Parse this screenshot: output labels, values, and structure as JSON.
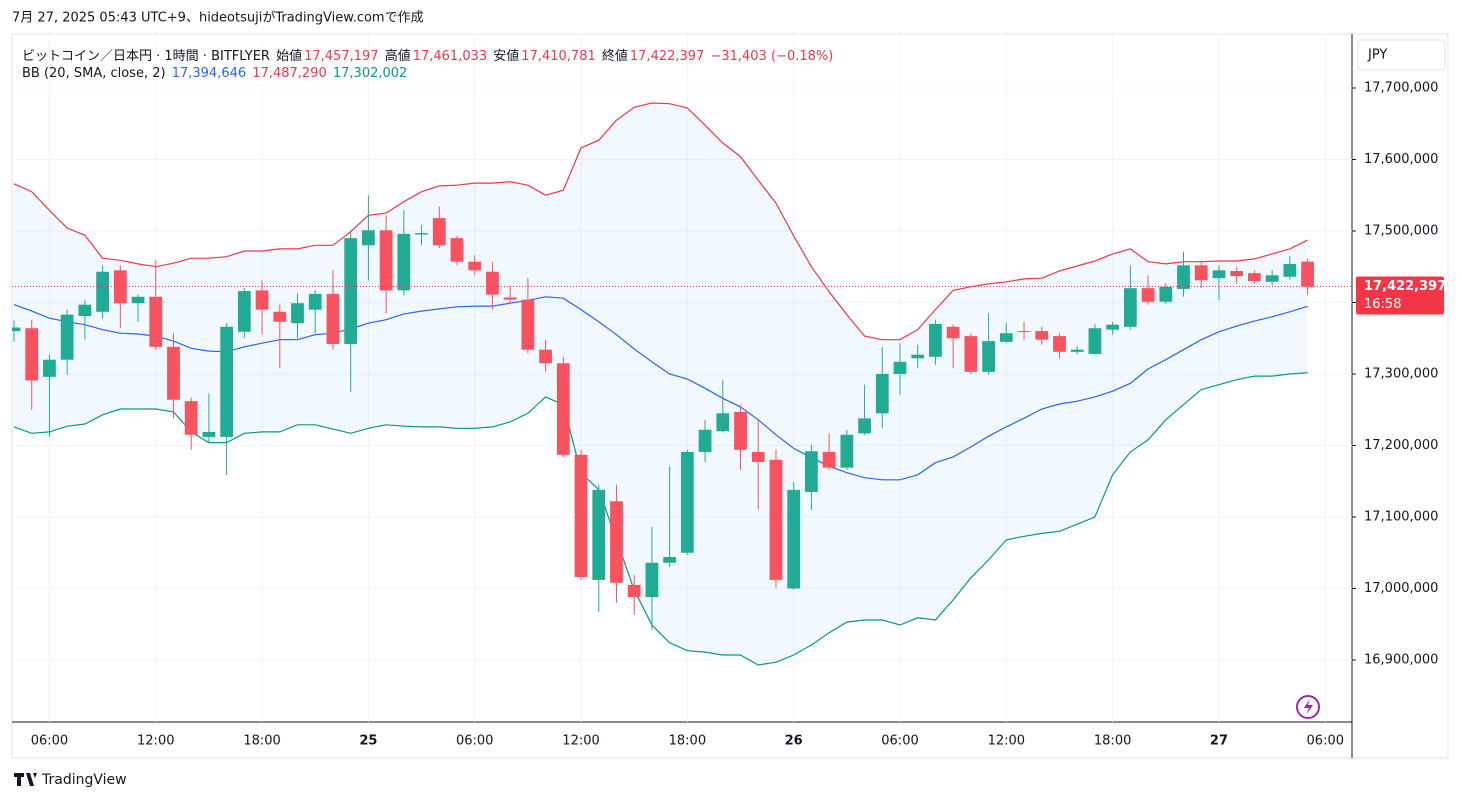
{
  "header": {
    "caption": "7月 27, 2025 05:43 UTC+9、hideotsujiがTradingView.comで作成"
  },
  "legend": {
    "symbol": "ビットコイン／日本円 · 1時間 · BITFLYER",
    "open_label": "始値",
    "open": "17,457,197",
    "high_label": "高値",
    "high": "17,461,033",
    "low_label": "安値",
    "low": "17,410,781",
    "close_label": "終値",
    "close": "17,422,397",
    "change": "−31,403 (−0.18%)",
    "bb_label": "BB (20, SMA, close, 2)",
    "bb_basis": "17,394,646",
    "bb_upper": "17,487,290",
    "bb_lower": "17,302,002"
  },
  "currency": "JPY",
  "price_tag": {
    "price": "17,422,397",
    "countdown": "16:58"
  },
  "footer": {
    "brand": "TradingView"
  },
  "chart_data": {
    "type": "candlestick",
    "categories": [
      null,
      null,
      "06:00",
      null,
      null,
      null,
      null,
      null,
      "12:00",
      null,
      null,
      null,
      null,
      null,
      "18:00",
      null,
      null,
      null,
      null,
      null,
      "25",
      null,
      null,
      null,
      null,
      null,
      "06:00",
      null,
      null,
      null,
      null,
      null,
      "12:00",
      null,
      null,
      null,
      null,
      null,
      "18:00",
      null,
      null,
      null,
      null,
      null,
      "26",
      null,
      null,
      null,
      null,
      null,
      "06:00",
      null,
      null,
      null,
      null,
      null,
      "12:00",
      null,
      null,
      null,
      null,
      null,
      "18:00",
      null,
      null,
      null,
      null,
      null,
      "27",
      null,
      null,
      null,
      null,
      null,
      "06:00"
    ],
    "up_color": "#22ab94",
    "down_color": "#f7525f",
    "open": [
      17360000,
      17364000,
      17296000,
      17320000,
      17381000,
      17387000,
      17445000,
      17399000,
      17408000,
      17338000,
      17262000,
      17212000,
      17212000,
      17359000,
      17417000,
      17387000,
      17371000,
      17390000,
      17412000,
      17342000,
      17480000,
      17501000,
      17417000,
      17495000,
      17518000,
      17490000,
      17457000,
      17443000,
      17407000,
      17404000,
      17334000,
      17315000,
      17187000,
      17012000,
      17122000,
      17005000,
      16988000,
      17036000,
      17050000,
      17191000,
      17220000,
      17247000,
      17191000,
      17180000,
      17000000,
      17135000,
      17191000,
      17169000,
      17217000,
      17245000,
      17300000,
      17322000,
      17324000,
      17366000,
      17353000,
      17303000,
      17345000,
      17360000,
      17360000,
      17353000,
      17331000,
      17328000,
      17362000,
      17366000,
      17420000,
      17401000,
      17419000,
      17452000,
      17434000,
      17444000,
      17441000,
      17429000,
      17436000,
      17457197,
      null
    ],
    "high": [
      17375000,
      17376000,
      17327000,
      17390000,
      17404000,
      17452000,
      17452000,
      17411000,
      17459000,
      17357000,
      17267000,
      17273000,
      17371000,
      17420000,
      17431000,
      17397000,
      17413000,
      17417000,
      17445000,
      17501000,
      17550000,
      17522000,
      17529000,
      17508000,
      17534000,
      17493000,
      17466000,
      17457000,
      17424000,
      17434000,
      17348000,
      17324000,
      17194000,
      17145000,
      17145000,
      17019000,
      17086000,
      17171000,
      17194000,
      17236000,
      17292000,
      17257000,
      17236000,
      17194000,
      17149000,
      17201000,
      17217000,
      17222000,
      17285000,
      17338000,
      17343000,
      17341000,
      17376000,
      17369000,
      17357000,
      17385000,
      17371000,
      17373000,
      17366000,
      17357000,
      17339000,
      17370000,
      17373000,
      17452000,
      17438000,
      17427000,
      17471000,
      17457000,
      17452000,
      17450000,
      17445000,
      17445000,
      17465000,
      17461033,
      null
    ],
    "low": [
      17345000,
      17250000,
      17212000,
      17299000,
      17348000,
      17378000,
      17364000,
      17373000,
      17334000,
      17238000,
      17194000,
      17204000,
      17159000,
      17350000,
      17355000,
      17308000,
      17350000,
      17357000,
      17334000,
      17275000,
      17431000,
      17385000,
      17410000,
      17480000,
      17476000,
      17452000,
      17438000,
      17390000,
      17397000,
      17329000,
      17303000,
      17183000,
      17012000,
      16967000,
      16980000,
      16963000,
      16942000,
      17030000,
      17047000,
      17177000,
      17219000,
      17166000,
      17110000,
      17001000,
      16998000,
      17110000,
      17166000,
      17166000,
      17215000,
      17224000,
      17271000,
      17308000,
      17313000,
      17308000,
      17300000,
      17299000,
      17343000,
      17348000,
      17341000,
      17322000,
      17328000,
      17327000,
      17355000,
      17362000,
      17397000,
      17398000,
      17408000,
      17420000,
      17403000,
      17426000,
      17426000,
      17424000,
      17432000,
      17410781,
      null
    ],
    "close": [
      17365000,
      17291000,
      17320000,
      17383000,
      17397000,
      17443000,
      17399000,
      17408000,
      17338000,
      17264000,
      17215000,
      17219000,
      17366000,
      17416000,
      17390000,
      17373000,
      17399000,
      17412000,
      17342000,
      17490000,
      17501000,
      17417000,
      17496000,
      17497000,
      17480000,
      17457000,
      17445000,
      17411000,
      17404000,
      17334000,
      17315000,
      17187000,
      17016000,
      17138000,
      17008000,
      16988000,
      17036000,
      17044000,
      17191000,
      17222000,
      17245000,
      17194000,
      17177000,
      17012000,
      17138000,
      17192000,
      17169000,
      17215000,
      17238000,
      17300000,
      17317000,
      17327000,
      17370000,
      17350000,
      17303000,
      17346000,
      17357000,
      17359000,
      17348000,
      17331000,
      17334000,
      17364000,
      17369000,
      17420000,
      17401000,
      17422000,
      17452000,
      17431000,
      17445000,
      17437000,
      17430000,
      17438000,
      17454000,
      17422397,
      null
    ],
    "bands": {
      "fill": "rgba(33,150,243,0.06)",
      "upper": {
        "color": "#f23645",
        "values": [
          17566000,
          17555000,
          17529000,
          17504000,
          17494000,
          17462000,
          17459000,
          17454000,
          17450000,
          17455000,
          17462000,
          17462000,
          17464000,
          17472000,
          17472000,
          17475000,
          17475000,
          17480000,
          17480000,
          17499000,
          17522000,
          17525000,
          17541000,
          17555000,
          17563000,
          17564000,
          17567000,
          17567000,
          17569000,
          17564000,
          17550000,
          17557000,
          17616000,
          17627000,
          17655000,
          17673000,
          17679000,
          17678000,
          17672000,
          17648000,
          17623000,
          17604000,
          17571000,
          17539000,
          17493000,
          17450000,
          17415000,
          17383000,
          17353000,
          17348000,
          17348000,
          17362000,
          17390000,
          17417000,
          17422000,
          17426000,
          17429000,
          17433000,
          17434000,
          17444000,
          17451000,
          17458000,
          17468000,
          17475000,
          17457000,
          17454000,
          17457000,
          17457000,
          17458000,
          17458000,
          17461000,
          17468000,
          17475000,
          17487290,
          null
        ]
      },
      "basis": {
        "color": "#2962ff",
        "values": [
          17397000,
          17388000,
          17378000,
          17373000,
          17369000,
          17362000,
          17357000,
          17356000,
          17353000,
          17346000,
          17336000,
          17332000,
          17331000,
          17338000,
          17343000,
          17348000,
          17348000,
          17355000,
          17357000,
          17363000,
          17371000,
          17376000,
          17384000,
          17388000,
          17391000,
          17394000,
          17395000,
          17395000,
          17399000,
          17403000,
          17408000,
          17406000,
          17390000,
          17373000,
          17355000,
          17335000,
          17317000,
          17300000,
          17293000,
          17280000,
          17266000,
          17254000,
          17236000,
          17215000,
          17196000,
          17183000,
          17171000,
          17162000,
          17155000,
          17152000,
          17152000,
          17159000,
          17176000,
          17184000,
          17198000,
          17213000,
          17226000,
          17238000,
          17251000,
          17258000,
          17262000,
          17268000,
          17276000,
          17287000,
          17307000,
          17320000,
          17334000,
          17348000,
          17359000,
          17367000,
          17374000,
          17380000,
          17387000,
          17394646,
          null
        ]
      },
      "lower": {
        "color": "#089981",
        "values": [
          17226000,
          17217000,
          17219000,
          17227000,
          17230000,
          17243000,
          17251000,
          17251000,
          17251000,
          17247000,
          17219000,
          17204000,
          17204000,
          17217000,
          17219000,
          17219000,
          17229000,
          17229000,
          17223000,
          17217000,
          17224000,
          17229000,
          17227000,
          17226000,
          17226000,
          17224000,
          17224000,
          17226000,
          17233000,
          17245000,
          17268000,
          17257000,
          17162000,
          17138000,
          17068000,
          16998000,
          16949000,
          16924000,
          16913000,
          16911000,
          16907000,
          16907000,
          16893000,
          16897000,
          16907000,
          16921000,
          16938000,
          16953000,
          16956000,
          16956000,
          16949000,
          16959000,
          16956000,
          16984000,
          17015000,
          17040000,
          17068000,
          17073000,
          17077000,
          17080000,
          17090000,
          17100000,
          17159000,
          17191000,
          17208000,
          17236000,
          17257000,
          17278000,
          17285000,
          17292000,
          17297000,
          17297000,
          17300000,
          17302002,
          null
        ]
      }
    },
    "ylim": [
      16813300,
      17775500
    ],
    "yticks": [
      {
        "value": 16900000,
        "label": "16,900,000"
      },
      {
        "value": 17000000,
        "label": "17,000,000"
      },
      {
        "value": 17100000,
        "label": "17,100,000"
      },
      {
        "value": 17200000,
        "label": "17,200,000"
      },
      {
        "value": 17300000,
        "label": "17,300,000"
      },
      {
        "value": 17400000,
        "label": "17,400,000"
      },
      {
        "value": 17500000,
        "label": "17,500,000"
      },
      {
        "value": 17600000,
        "label": "17,600,000"
      },
      {
        "value": 17700000,
        "label": "17,700,000"
      }
    ],
    "grid": true,
    "last_price_color": "#f23645"
  }
}
